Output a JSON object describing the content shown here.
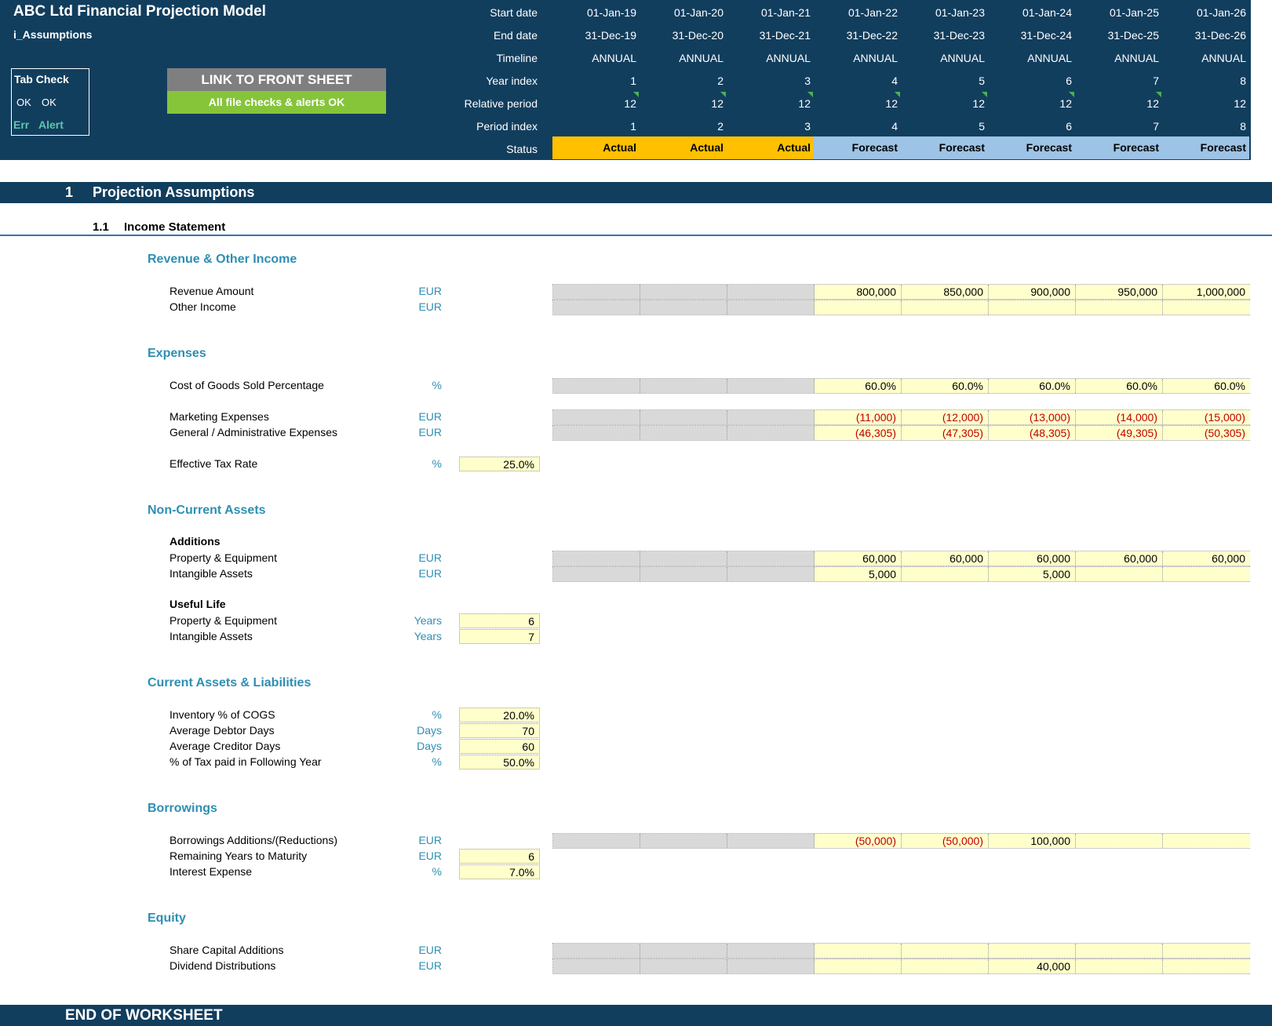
{
  "header": {
    "title": "ABC Ltd Financial Projection Model",
    "sheet": "i_Assumptions",
    "tab_check": {
      "title": "Tab Check",
      "ok1": "OK",
      "ok2": "OK",
      "err": "Err",
      "alert": "Alert"
    },
    "link_button": "LINK TO FRONT SHEET",
    "checks_status": "All file checks & alerts OK",
    "timeline_labels": [
      "Start date",
      "End date",
      "Timeline",
      "Year index",
      "Relative period",
      "Period index",
      "Status"
    ],
    "periods": [
      {
        "start": "01-Jan-19",
        "end": "31-Dec-19",
        "timeline": "ANNUAL",
        "year_index": "1",
        "relative_period": "12",
        "period_index": "1",
        "status": "Actual"
      },
      {
        "start": "01-Jan-20",
        "end": "31-Dec-20",
        "timeline": "ANNUAL",
        "year_index": "2",
        "relative_period": "12",
        "period_index": "2",
        "status": "Actual"
      },
      {
        "start": "01-Jan-21",
        "end": "31-Dec-21",
        "timeline": "ANNUAL",
        "year_index": "3",
        "relative_period": "12",
        "period_index": "3",
        "status": "Actual"
      },
      {
        "start": "01-Jan-22",
        "end": "31-Dec-22",
        "timeline": "ANNUAL",
        "year_index": "4",
        "relative_period": "12",
        "period_index": "4",
        "status": "Forecast"
      },
      {
        "start": "01-Jan-23",
        "end": "31-Dec-23",
        "timeline": "ANNUAL",
        "year_index": "5",
        "relative_period": "12",
        "period_index": "5",
        "status": "Forecast"
      },
      {
        "start": "01-Jan-24",
        "end": "31-Dec-24",
        "timeline": "ANNUAL",
        "year_index": "6",
        "relative_period": "12",
        "period_index": "6",
        "status": "Forecast"
      },
      {
        "start": "01-Jan-25",
        "end": "31-Dec-25",
        "timeline": "ANNUAL",
        "year_index": "7",
        "relative_period": "12",
        "period_index": "7",
        "status": "Forecast"
      },
      {
        "start": "01-Jan-26",
        "end": "31-Dec-26",
        "timeline": "ANNUAL",
        "year_index": "8",
        "relative_period": "12",
        "period_index": "8",
        "status": "Forecast"
      }
    ]
  },
  "colors": {
    "header_bg": "#123e5e",
    "actual": "#ffc000",
    "forecast": "#9dc3e6",
    "input": "#ffffcc",
    "accent": "#2e8fb2"
  },
  "section": {
    "number": "1",
    "title": "Projection Assumptions"
  },
  "subsection": {
    "number": "1.1",
    "title": "Income Statement"
  },
  "groups": {
    "revenue": "Revenue & Other Income",
    "expenses": "Expenses",
    "nca": "Non-Current Assets",
    "current": "Current Assets & Liabilities",
    "borrowings": "Borrowings",
    "equity": "Equity"
  },
  "rows": {
    "revenue_amount": {
      "label": "Revenue Amount",
      "unit": "EUR",
      "values": [
        "",
        "",
        "",
        "800,000",
        "850,000",
        "900,000",
        "950,000",
        "1,000,000"
      ]
    },
    "other_income": {
      "label": "Other Income",
      "unit": "EUR",
      "values": [
        "",
        "",
        "",
        "",
        "",
        "",
        "",
        ""
      ]
    },
    "cogs_pct": {
      "label": "Cost of Goods Sold Percentage",
      "unit": "%",
      "values": [
        "",
        "",
        "",
        "60.0%",
        "60.0%",
        "60.0%",
        "60.0%",
        "60.0%"
      ]
    },
    "marketing": {
      "label": "Marketing Expenses",
      "unit": "EUR",
      "values": [
        "",
        "",
        "",
        "(11,000)",
        "(12,000)",
        "(13,000)",
        "(14,000)",
        "(15,000)"
      ]
    },
    "gen_admin": {
      "label": "General / Administrative Expenses",
      "unit": "EUR",
      "values": [
        "",
        "",
        "",
        "(46,305)",
        "(47,305)",
        "(48,305)",
        "(49,305)",
        "(50,305)"
      ]
    },
    "tax_rate": {
      "label": "Effective Tax Rate",
      "unit": "%",
      "value": "25.0%"
    },
    "additions_heading": "Additions",
    "add_ppe": {
      "label": "Property & Equipment",
      "unit": "EUR",
      "values": [
        "",
        "",
        "",
        "60,000",
        "60,000",
        "60,000",
        "60,000",
        "60,000"
      ]
    },
    "add_intangible": {
      "label": "Intangible Assets",
      "unit": "EUR",
      "values": [
        "",
        "",
        "",
        "5,000",
        "",
        "5,000",
        "",
        ""
      ]
    },
    "useful_life_heading": "Useful Life",
    "life_ppe": {
      "label": "Property & Equipment",
      "unit": "Years",
      "value": "6"
    },
    "life_intangible": {
      "label": "Intangible Assets",
      "unit": "Years",
      "value": "7"
    },
    "inventory": {
      "label": "Inventory % of COGS",
      "unit": "%",
      "value": "20.0%"
    },
    "debtor_days": {
      "label": "Average Debtor Days",
      "unit": "Days",
      "value": "70"
    },
    "creditor_days": {
      "label": "Average Creditor Days",
      "unit": "Days",
      "value": "60"
    },
    "tax_following": {
      "label": "% of Tax paid in Following Year",
      "unit": "%",
      "value": "50.0%"
    },
    "borrowings": {
      "label": "Borrowings Additions/(Reductions)",
      "unit": "EUR",
      "values": [
        "",
        "",
        "",
        "(50,000)",
        "(50,000)",
        "100,000",
        "",
        ""
      ]
    },
    "maturity": {
      "label": "Remaining Years to Maturity",
      "unit": "EUR",
      "value": "6"
    },
    "interest": {
      "label": "Interest Expense",
      "unit": "%",
      "value": "7.0%"
    },
    "share_capital": {
      "label": "Share Capital Additions",
      "unit": "EUR",
      "values": [
        "",
        "",
        "",
        "",
        "",
        "",
        "",
        ""
      ]
    },
    "dividends": {
      "label": "Dividend Distributions",
      "unit": "EUR",
      "values": [
        "",
        "",
        "",
        "",
        "",
        "40,000",
        "",
        ""
      ]
    }
  },
  "end_text": "END OF WORKSHEET"
}
